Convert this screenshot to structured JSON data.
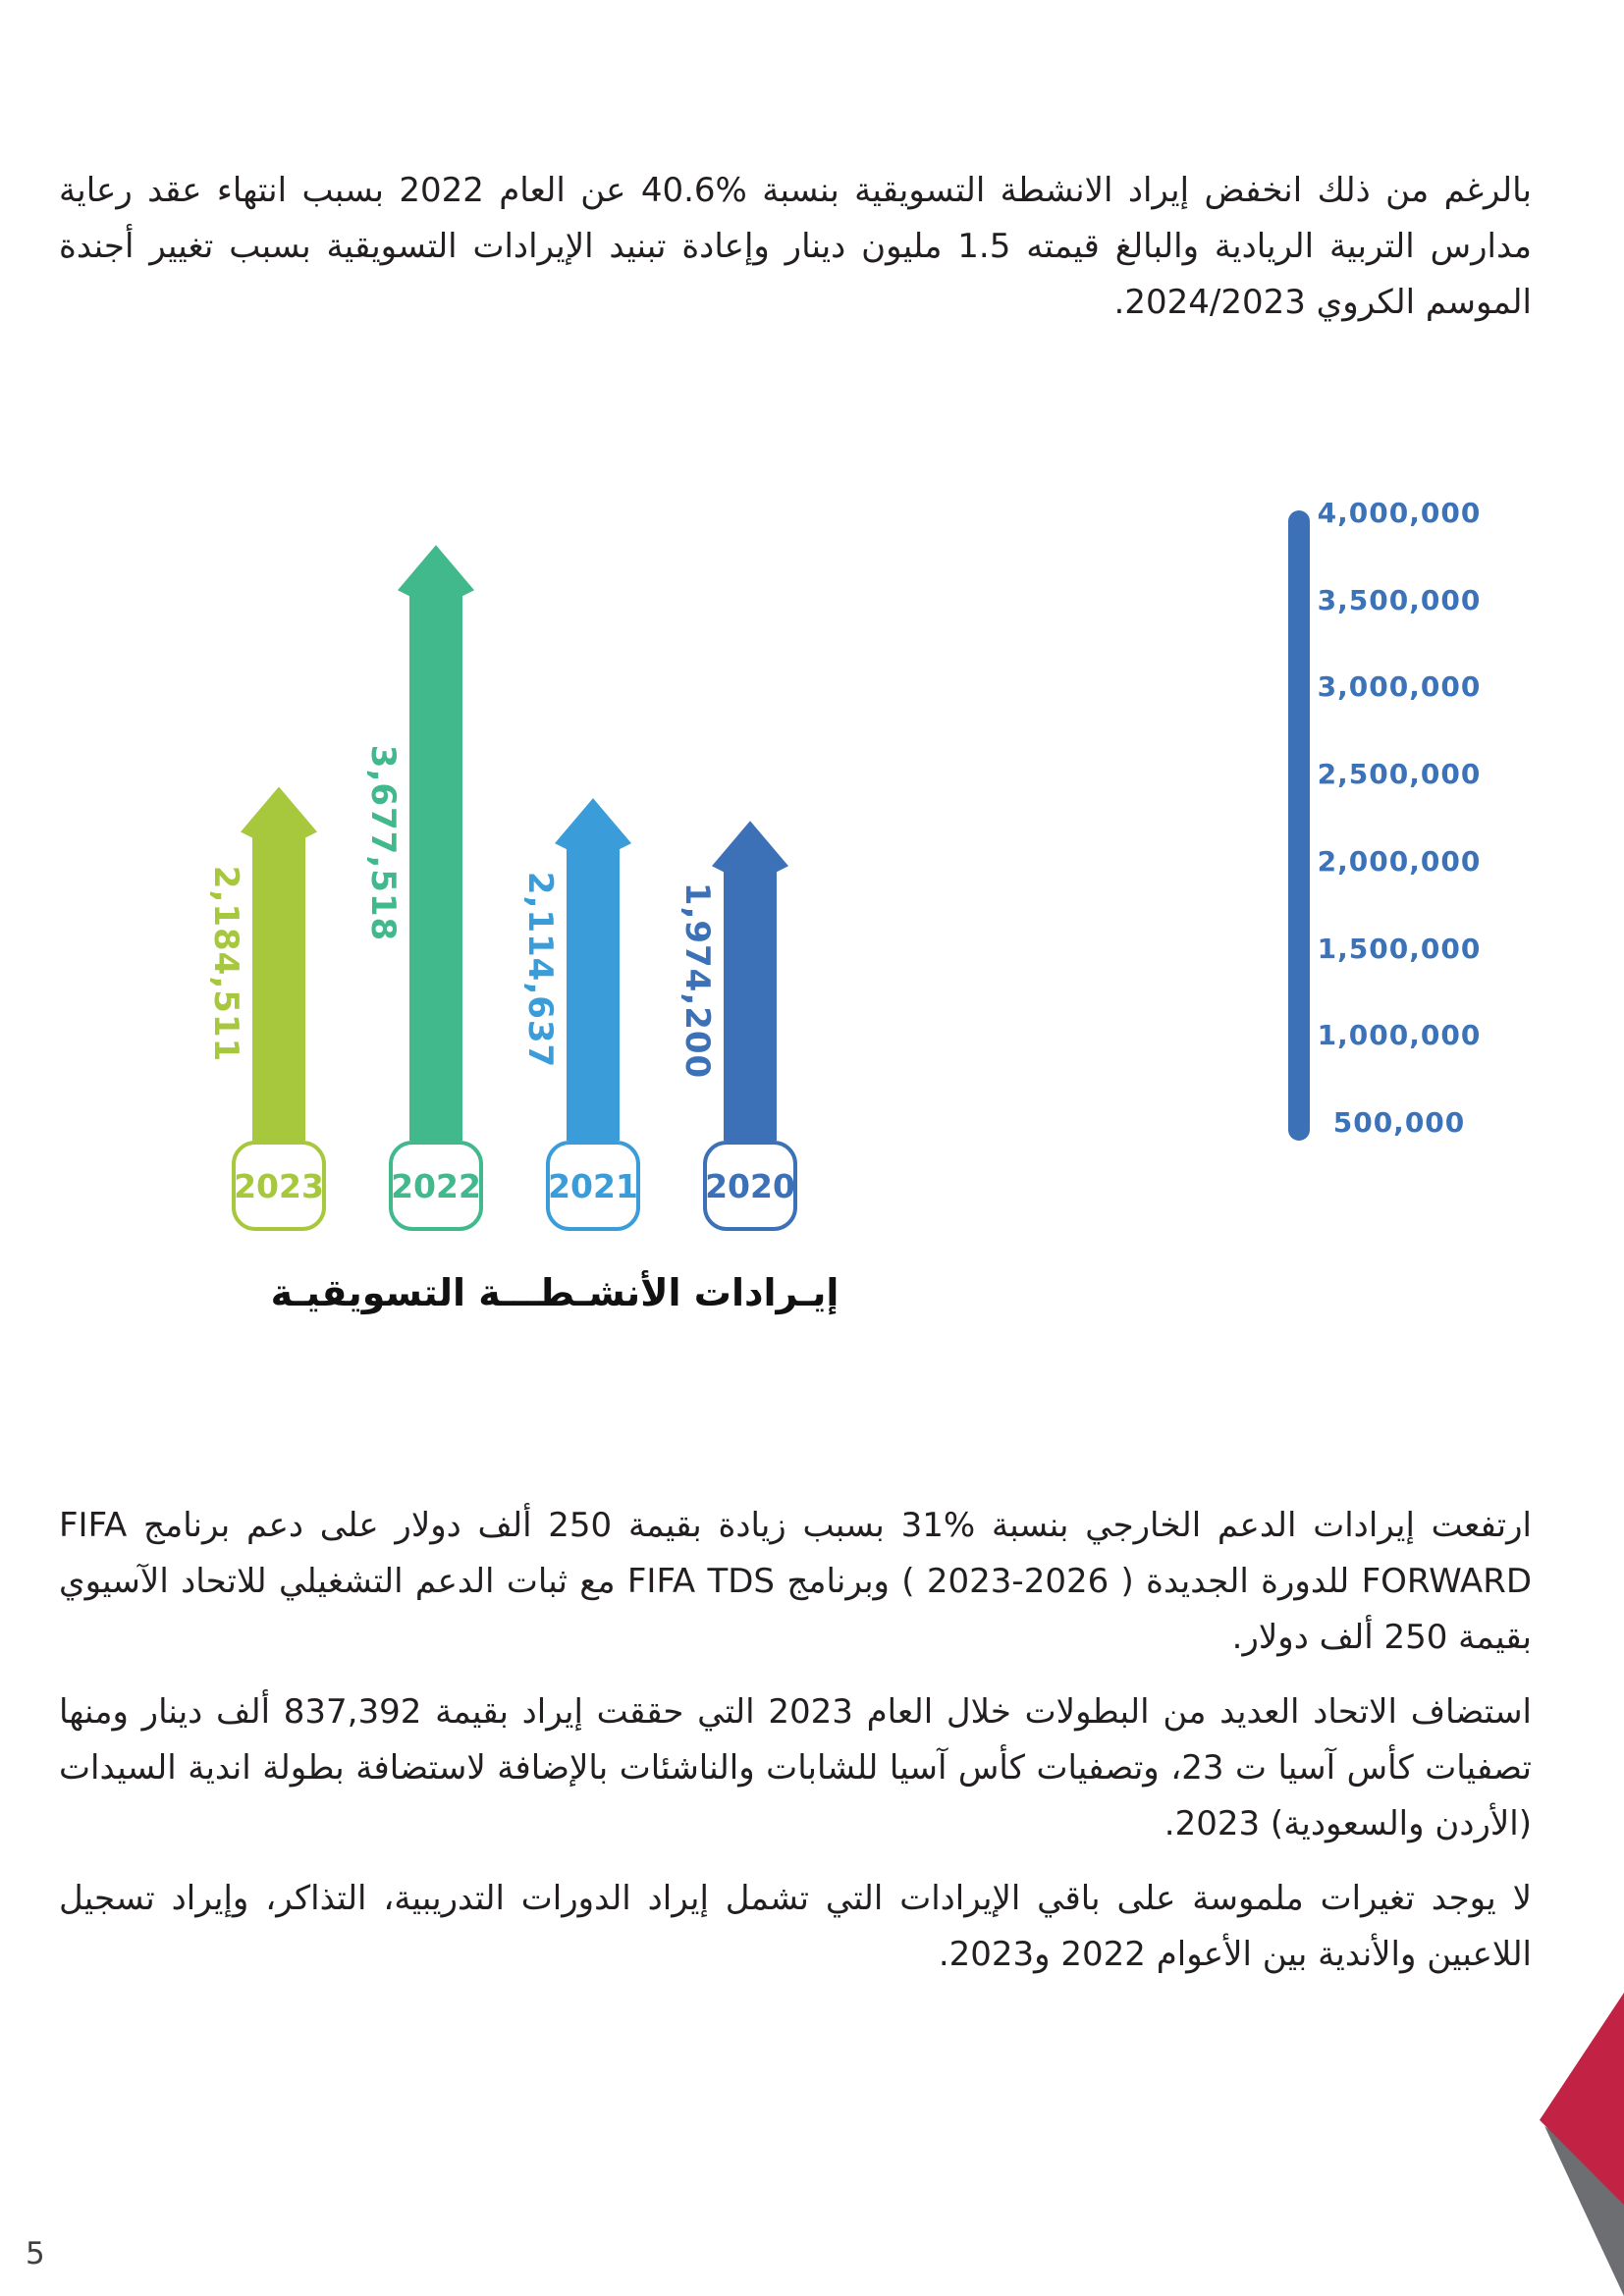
{
  "page_number": "5",
  "paragraphs": {
    "p1": "بالرغم من ذلك انخفض إيراد الانشطة التسويقية بنسبة %40.6 عن العام 2022 بسبب انتهاء عقد رعاية مدارس التربية الريادية والبالغ قيمته 1.5 مليون دينار وإعادة تبنيد الإيرادات التسويقية بسبب تغيير أجندة الموسم الكروي 2024/2023.",
    "p2": "ارتفعت إيرادات الدعم الخارجي بنسبة %31 بسبب زيادة بقيمة 250 ألف دولار على دعم برنامج FIFA FORWARD للدورة الجديدة ( 2026-2023 ) وبرنامج FIFA TDS مع ثبات الدعم التشغيلي للاتحاد الآسيوي بقيمة 250 ألف دولار.",
    "p3": "استضاف الاتحاد العديد من البطولات خلال العام 2023 التي حققت إيراد بقيمة 837,392 ألف دينار ومنها تصفيات كأس آسيا ت 23، وتصفيات كأس آسيا للشابات والناشئات بالإضافة لاستضافة بطولة اندية السيدات (الأردن والسعودية) 2023.",
    "p4": "لا يوجد تغيرات ملموسة على باقي الإيرادات التي تشمل إيراد الدورات التدريبية، التذاكر، وإيراد تسجيل اللاعبين والأندية بين الأعوام 2022 و2023."
  },
  "chart_data": {
    "type": "bar",
    "title": "إيـرادات الأنشـطـــة التسويقيـة",
    "categories": [
      "2023",
      "2022",
      "2021",
      "2020"
    ],
    "values": [
      2184511,
      3677518,
      2114637,
      1974200
    ],
    "value_labels": [
      "2,184,511",
      "3,677,518",
      "2,114,637",
      "1,974,200"
    ],
    "bar_colors": [
      "#a7c83d",
      "#42b88d",
      "#3a9cd9",
      "#3c71b7"
    ],
    "y_axis": {
      "position": "right",
      "color": "#3b72b8",
      "min": 0,
      "max": 4000000,
      "ticks": [
        "4,000,000",
        "3,500,000",
        "3,000,000",
        "2,500,000",
        "2,000,000",
        "1,500,000",
        "1,000,000",
        "500,000"
      ]
    },
    "direction": "rtl",
    "legend": false,
    "gridlines": false
  },
  "decor": {
    "flag_red": "#c22344",
    "flag_gray": "#6d6e71"
  }
}
